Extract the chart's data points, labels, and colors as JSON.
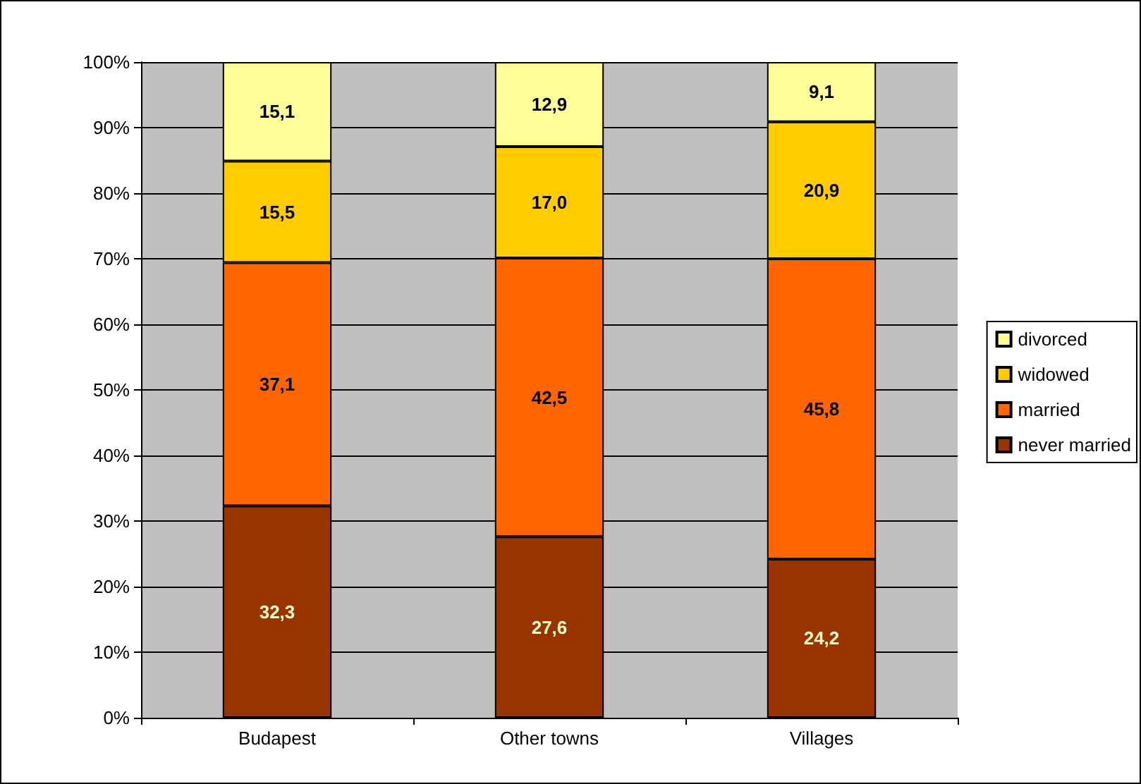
{
  "chart_data": {
    "type": "bar",
    "stacked": true,
    "categories": [
      "Budapest",
      "Other towns",
      "Villages"
    ],
    "series": [
      {
        "name": "never married",
        "color": "#993300",
        "values": [
          32.3,
          27.6,
          24.2
        ],
        "value_labels": [
          "32,3",
          "27,6",
          "24,2"
        ]
      },
      {
        "name": "married",
        "color": "#ff6600",
        "values": [
          37.1,
          42.5,
          45.8
        ],
        "value_labels": [
          "37,1",
          "42,5",
          "45,8"
        ]
      },
      {
        "name": "widowed",
        "color": "#ffcc00",
        "values": [
          15.5,
          17.0,
          20.9
        ],
        "value_labels": [
          "15,5",
          "17,0",
          "20,9"
        ]
      },
      {
        "name": "divorced",
        "color": "#ffff99",
        "values": [
          15.1,
          12.9,
          9.1
        ],
        "value_labels": [
          "15,1",
          "12,9",
          "9,1"
        ]
      }
    ],
    "ylim": [
      0,
      100
    ],
    "yticks": [
      {
        "value": 0,
        "label": "0%"
      },
      {
        "value": 10,
        "label": "10%"
      },
      {
        "value": 20,
        "label": "20%"
      },
      {
        "value": 30,
        "label": "30%"
      },
      {
        "value": 40,
        "label": "40%"
      },
      {
        "value": 50,
        "label": "50%"
      },
      {
        "value": 60,
        "label": "60%"
      },
      {
        "value": 70,
        "label": "70%"
      },
      {
        "value": 80,
        "label": "80%"
      },
      {
        "value": 90,
        "label": "90%"
      },
      {
        "value": 100,
        "label": "100%"
      }
    ],
    "grid": "y",
    "legend": "right"
  }
}
